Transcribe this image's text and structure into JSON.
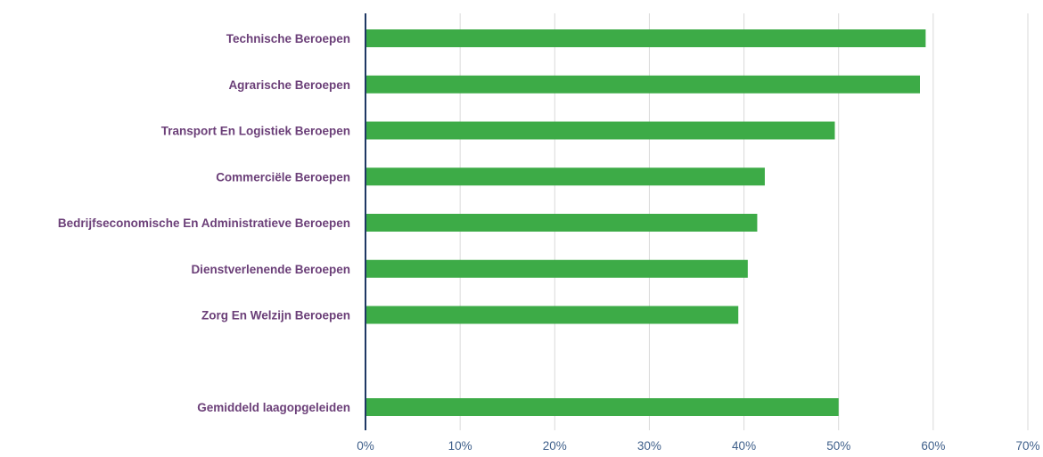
{
  "chart_data": {
    "type": "bar",
    "orientation": "horizontal",
    "title": "",
    "xlabel": "",
    "ylabel": "",
    "categories": [
      "Technische Beroepen",
      "Agrarische Beroepen",
      "Transport En Logistiek Beroepen",
      "Commerciële Beroepen",
      "Bedrijfseconomische En Administratieve Beroepen",
      "Dienstverlenende Beroepen",
      "Zorg En Welzijn Beroepen",
      "",
      "Gemiddeld laagopgeleiden"
    ],
    "values": [
      59.2,
      58.6,
      49.6,
      42.2,
      41.4,
      40.4,
      39.4,
      null,
      50.0
    ],
    "xlim": [
      0,
      70
    ],
    "xticks": [
      0,
      10,
      20,
      30,
      40,
      50,
      60,
      70
    ],
    "xtick_labels": [
      "0%",
      "10%",
      "20%",
      "30%",
      "40%",
      "50%",
      "60%",
      "70%"
    ],
    "grid": "vertical",
    "legend": "none",
    "colors": {
      "bar": "#3dab47",
      "category_text": "#6b3f78",
      "tick_text": "#3e5f8a",
      "axis": "#1f3864",
      "grid": "#d9d9d9"
    }
  }
}
